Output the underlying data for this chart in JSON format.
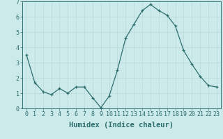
{
  "x": [
    0,
    1,
    2,
    3,
    4,
    5,
    6,
    7,
    8,
    9,
    10,
    11,
    12,
    13,
    14,
    15,
    16,
    17,
    18,
    19,
    20,
    21,
    22,
    23
  ],
  "y": [
    3.5,
    1.7,
    1.1,
    0.9,
    1.3,
    1.0,
    1.4,
    1.4,
    0.7,
    0.05,
    0.8,
    2.5,
    4.6,
    5.5,
    6.4,
    6.8,
    6.4,
    6.1,
    5.4,
    3.8,
    2.9,
    2.1,
    1.5,
    1.4
  ],
  "xlabel": "Humidex (Indice chaleur)",
  "line_color": "#2d6e6e",
  "bg_color": "#cceaea",
  "grid_color": "#b8d8d8",
  "xlim": [
    -0.5,
    23.5
  ],
  "ylim": [
    0,
    7
  ],
  "yticks": [
    0,
    1,
    2,
    3,
    4,
    5,
    6,
    7
  ],
  "xticks": [
    0,
    1,
    2,
    3,
    4,
    5,
    6,
    7,
    8,
    9,
    10,
    11,
    12,
    13,
    14,
    15,
    16,
    17,
    18,
    19,
    20,
    21,
    22,
    23
  ],
  "xlabel_fontsize": 7.5,
  "tick_fontsize": 6.0,
  "axis_color": "#2d6e6e"
}
